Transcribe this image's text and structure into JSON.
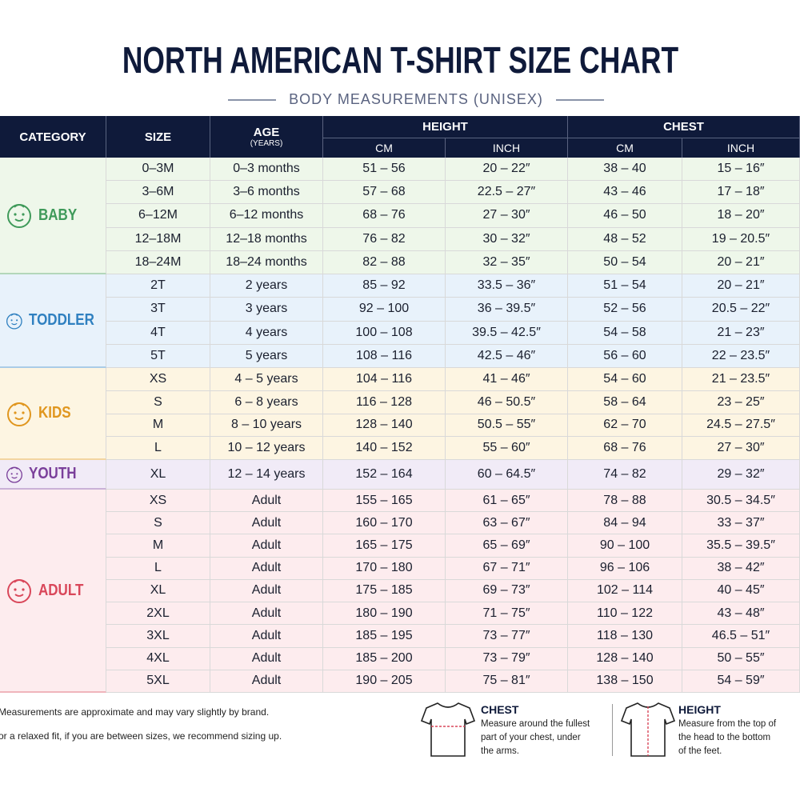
{
  "header": {
    "title": "NORTH AMERICAN T-SHIRT SIZE CHART",
    "subtitle": "BODY MEASUREMENTS (UNISEX)"
  },
  "table": {
    "headers": {
      "category": "CATEGORY",
      "size": "SIZE",
      "age": "AGE",
      "age_unit": "(YEARS)",
      "height": "HEIGHT",
      "chest": "CHEST",
      "sub": [
        "CM",
        "INCH",
        "CM",
        "INCH"
      ]
    },
    "groups": [
      {
        "label": "BABY",
        "color": "#3f9a5a",
        "background": "#eef7ea",
        "rows": [
          [
            "0–3M",
            "0–3 months",
            "51 – 56",
            "20 – 22″",
            "38 – 40",
            "15 – 16″"
          ],
          [
            "3–6M",
            "3–6 months",
            "57 – 68",
            "22.5 – 27″",
            "43 – 46",
            "17 – 18″"
          ],
          [
            "6–12M",
            "6–12 months",
            "68 – 76",
            "27 – 30″",
            "46 – 50",
            "18 – 20″"
          ],
          [
            "12–18M",
            "12–18 months",
            "76 – 82",
            "30 – 32″",
            "48 – 52",
            "19 – 20.5″"
          ],
          [
            "18–24M",
            "18–24 months",
            "82 – 88",
            "32 – 35″",
            "50 – 54",
            "20 – 21″"
          ]
        ]
      },
      {
        "label": "TODDLER",
        "color": "#2f80c0",
        "background": "#e8f2fb",
        "rows": [
          [
            "2T",
            "2 years",
            "85 – 92",
            "33.5 – 36″",
            "51 – 54",
            "20 – 21″"
          ],
          [
            "3T",
            "3 years",
            "92 – 100",
            "36 – 39.5″",
            "52 – 56",
            "20.5 – 22″"
          ],
          [
            "4T",
            "4 years",
            "100 – 108",
            "39.5 – 42.5″",
            "54 – 58",
            "21 – 23″"
          ],
          [
            "5T",
            "5 years",
            "108 – 116",
            "42.5 – 46″",
            "56 – 60",
            "22 – 23.5″"
          ]
        ]
      },
      {
        "label": "KIDS",
        "color": "#e0961e",
        "background": "#fdf5e2",
        "rows": [
          [
            "XS",
            "4 – 5 years",
            "104 – 116",
            "41 – 46″",
            "54 – 60",
            "21 – 23.5″"
          ],
          [
            "S",
            "6 – 8 years",
            "116 – 128",
            "46 – 50.5″",
            "58 – 64",
            "23 – 25″"
          ],
          [
            "M",
            "8 – 10 years",
            "128 – 140",
            "50.5 – 55″",
            "62 – 70",
            "24.5 – 27.5″"
          ],
          [
            "L",
            "10 – 12 years",
            "140 – 152",
            "55 – 60″",
            "68 – 76",
            "27 – 30″"
          ]
        ]
      },
      {
        "label": "YOUTH",
        "color": "#7a3f9a",
        "background": "#f1ebf7",
        "rows": [
          [
            "XL",
            "12 – 14 years",
            "152 – 164",
            "60 – 64.5″",
            "74 – 82",
            "29 – 32″"
          ]
        ]
      },
      {
        "label": "ADULT",
        "color": "#d9475a",
        "background": "#fdecee",
        "rows": [
          [
            "XS",
            "Adult",
            "155 – 165",
            "61 – 65″",
            "78 – 88",
            "30.5 – 34.5″"
          ],
          [
            "S",
            "Adult",
            "160 – 170",
            "63 – 67″",
            "84 – 94",
            "33 – 37″"
          ],
          [
            "M",
            "Adult",
            "165 – 175",
            "65 – 69″",
            "90 – 100",
            "35.5 – 39.5″"
          ],
          [
            "L",
            "Adult",
            "170 – 180",
            "67 – 71″",
            "96 – 106",
            "38 – 42″"
          ],
          [
            "XL",
            "Adult",
            "175 – 185",
            "69 – 73″",
            "102 – 114",
            "40 – 45″"
          ],
          [
            "2XL",
            "Adult",
            "180 – 190",
            "71 – 75″",
            "110 – 122",
            "43 – 48″"
          ],
          [
            "3XL",
            "Adult",
            "185 – 195",
            "73 – 77″",
            "118 – 130",
            "46.5 – 51″"
          ],
          [
            "4XL",
            "Adult",
            "185 – 200",
            "73 – 79″",
            "128 – 140",
            "50 – 55″"
          ],
          [
            "5XL",
            "Adult",
            "190 – 205",
            "75 – 81″",
            "138 – 150",
            "54 – 59″"
          ]
        ]
      }
    ]
  },
  "footer": {
    "notes": [
      "Measurements are approximate and may vary slightly by brand.",
      "or a relaxed fit, if you are between sizes, we recommend sizing up."
    ],
    "guides": [
      {
        "title": "CHEST",
        "lines": [
          "Measure around the fullest",
          "part of your chest, under",
          "the arms."
        ]
      },
      {
        "title": "HEIGHT",
        "lines": [
          "Measure from the top of",
          "the head to the bottom",
          "of the feet."
        ]
      }
    ]
  }
}
